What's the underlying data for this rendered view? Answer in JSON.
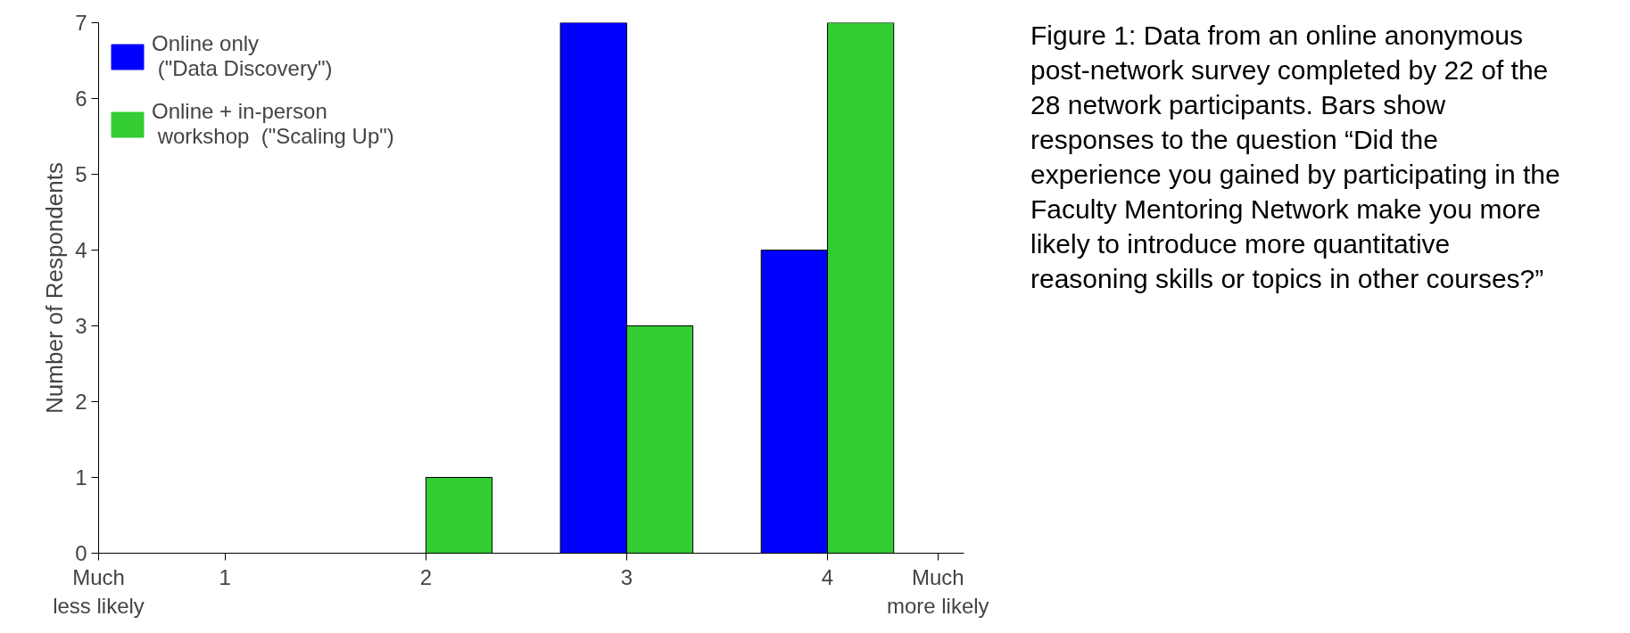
{
  "chart_data": {
    "type": "bar",
    "ylabel": "Number of Respondents",
    "x": [
      1,
      2,
      3,
      4
    ],
    "series": [
      {
        "name": "Online only\n (\"Data Discovery\")",
        "color": "#0000ff",
        "values": [
          0,
          0,
          7,
          4
        ]
      },
      {
        "name": "Online + in-person\n workshop  (\"Scaling Up\")",
        "color": "#33cc33",
        "values": [
          0,
          1,
          3,
          7
        ]
      }
    ],
    "xlim": [
      0.37,
      4.68
    ],
    "xticks": [
      {
        "value": 0.37,
        "label": "Much\nless likely"
      },
      1,
      2,
      3,
      4,
      {
        "value": 4.55,
        "label": "Much\nmore likely"
      }
    ],
    "ylim": [
      0,
      7
    ],
    "yticks": [
      0,
      1,
      2,
      3,
      4,
      5,
      6,
      7
    ],
    "grid": false,
    "legend": "top left",
    "annotations": [
      "Figure 1: Data from an online anonymous post-network survey completed by 22 of the 28 network participants.  Bars show responses to the question “Did the experience you gained by participating in the Faculty Mentoring Network make you more likely to introduce more quantitative reasoning skills or topics in other courses?”"
    ]
  }
}
